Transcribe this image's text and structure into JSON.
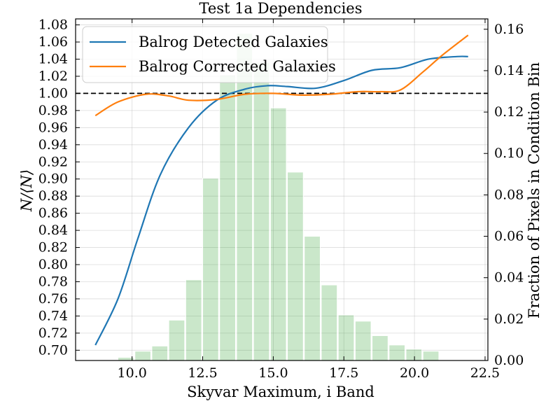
{
  "chart_data": {
    "type": "line",
    "title": "Test 1a Dependencies",
    "xlabel": "Skyvar Maximum, i Band",
    "ylabel": "N/⟨N⟩",
    "ylabel2": "Fraction of Pixels in Condition Bin",
    "xlim": [
      8.0,
      22.6
    ],
    "ylim": [
      0.688,
      1.087
    ],
    "y2lim": [
      0.0,
      0.165
    ],
    "x_ticks": [
      "10.0",
      "12.5",
      "15.0",
      "17.5",
      "20.0",
      "22.5"
    ],
    "x_tick_values": [
      10.0,
      12.5,
      15.0,
      17.5,
      20.0,
      22.5
    ],
    "y_ticks": [
      "0.70",
      "0.72",
      "0.74",
      "0.76",
      "0.78",
      "0.80",
      "0.82",
      "0.84",
      "0.86",
      "0.88",
      "0.90",
      "0.92",
      "0.94",
      "0.96",
      "0.98",
      "1.00",
      "1.02",
      "1.04",
      "1.06",
      "1.08"
    ],
    "y_tick_values": [
      0.7,
      0.72,
      0.74,
      0.76,
      0.78,
      0.8,
      0.82,
      0.84,
      0.86,
      0.88,
      0.9,
      0.92,
      0.94,
      0.96,
      0.98,
      1.0,
      1.02,
      1.04,
      1.06,
      1.08
    ],
    "y2_ticks": [
      "0.00",
      "0.02",
      "0.04",
      "0.06",
      "0.08",
      "0.10",
      "0.12",
      "0.14",
      "0.16"
    ],
    "y2_tick_values": [
      0.0,
      0.02,
      0.04,
      0.06,
      0.08,
      0.1,
      0.12,
      0.14,
      0.16
    ],
    "reference_line": 1.0,
    "grid": true,
    "legend_position": "top-left",
    "series": [
      {
        "name": "Balrog Detected Galaxies",
        "color": "#1f77b4",
        "x": [
          8.7,
          9.5,
          10.2,
          11.0,
          12.0,
          13.0,
          14.0,
          14.8,
          15.5,
          16.5,
          17.5,
          18.5,
          19.5,
          20.5,
          21.5,
          21.9
        ],
        "y": [
          0.706,
          0.76,
          0.83,
          0.905,
          0.96,
          0.992,
          1.005,
          1.009,
          1.008,
          1.006,
          1.015,
          1.027,
          1.03,
          1.04,
          1.043,
          1.043
        ]
      },
      {
        "name": "Balrog Corrected Galaxies",
        "color": "#ff7f0e",
        "x": [
          8.7,
          9.5,
          10.5,
          11.3,
          12.0,
          13.0,
          14.0,
          15.0,
          16.0,
          17.0,
          18.0,
          18.8,
          19.5,
          20.3,
          21.0,
          21.9
        ],
        "y": [
          0.974,
          0.99,
          0.999,
          0.997,
          0.992,
          0.993,
          0.999,
          1.0,
          0.998,
          0.999,
          1.002,
          1.002,
          1.004,
          1.025,
          1.045,
          1.068
        ]
      }
    ],
    "histogram": {
      "color": "#2ca02c",
      "bin_edges": [
        9.5,
        10.1,
        10.7,
        11.3,
        11.9,
        12.5,
        13.1,
        13.7,
        14.3,
        14.9,
        15.5,
        16.1,
        16.7,
        17.3,
        17.9,
        18.5,
        19.1,
        19.7,
        20.3,
        20.9,
        21.5,
        22.1
      ],
      "values": [
        0.0015,
        0.0045,
        0.007,
        0.0195,
        0.039,
        0.088,
        0.138,
        0.158,
        0.144,
        0.122,
        0.091,
        0.06,
        0.0365,
        0.022,
        0.019,
        0.012,
        0.0075,
        0.0055,
        0.0045,
        0.0,
        0.0
      ]
    }
  }
}
